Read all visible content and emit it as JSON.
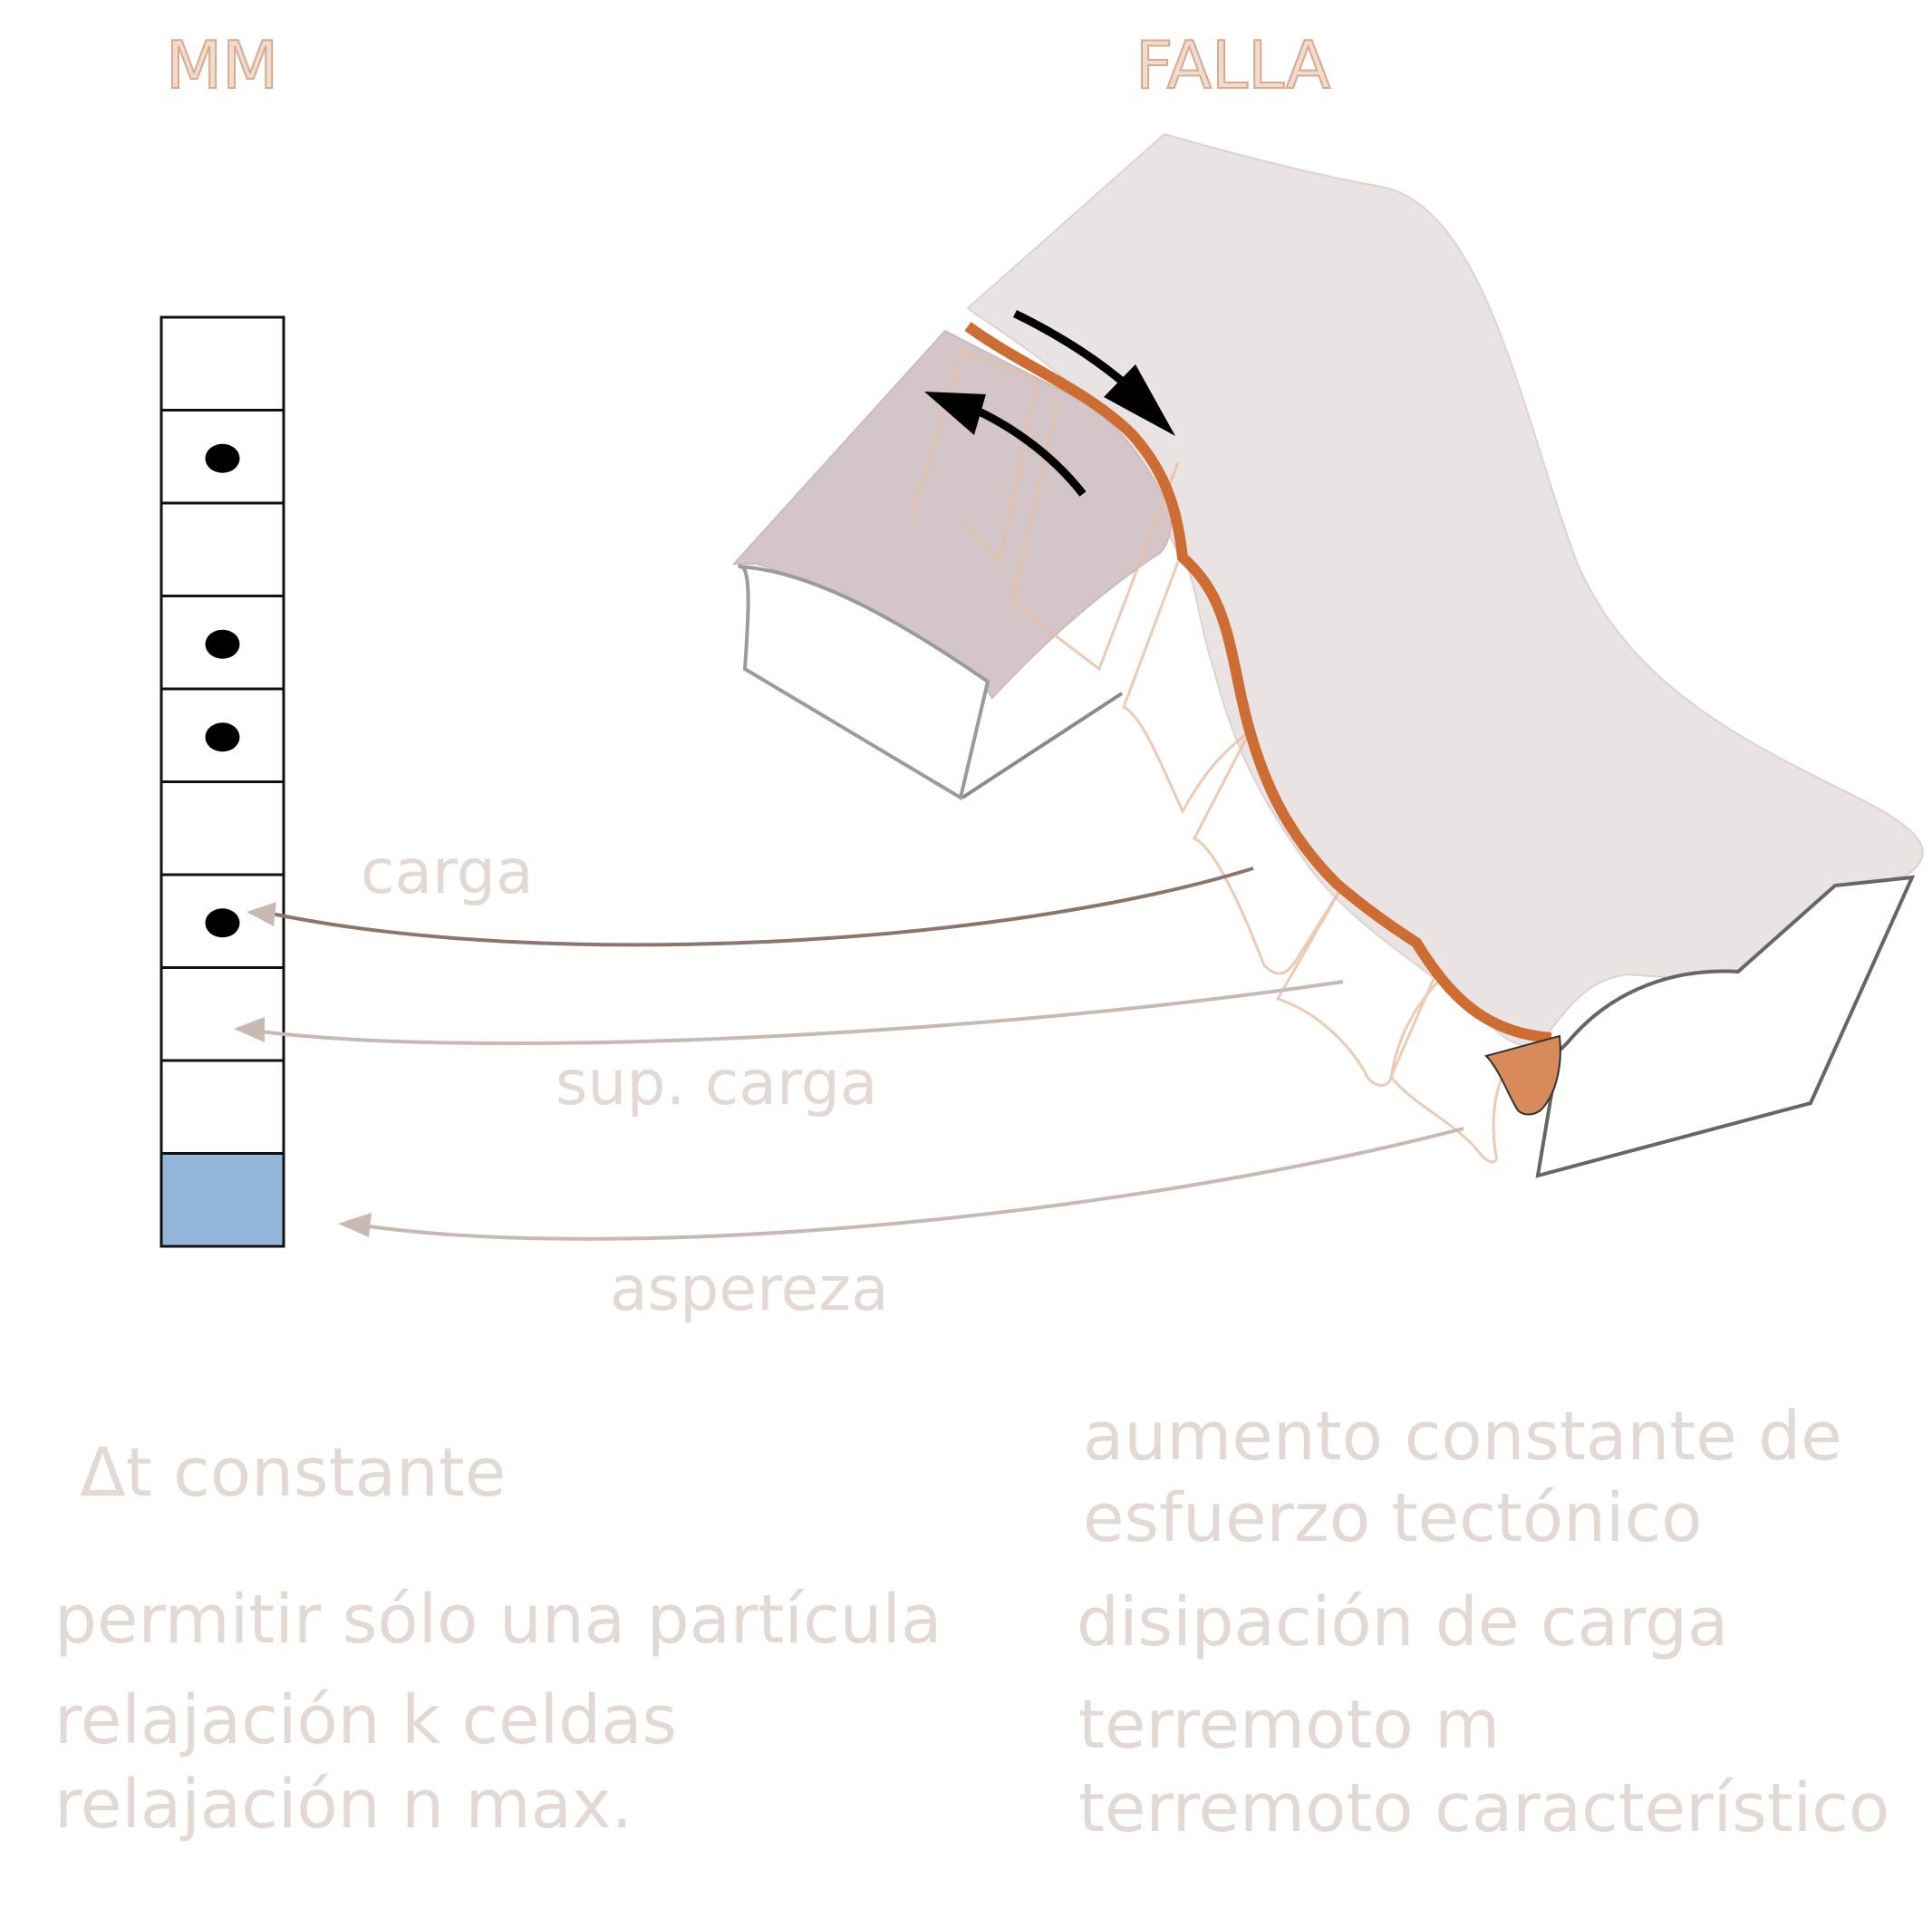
{
  "titles": {
    "mm": "MM",
    "falla": "FALLA"
  },
  "arrow_labels": {
    "carga": "carga",
    "sup_carga": "sup. carga",
    "aspereza": "aspereza"
  },
  "left_column": {
    "dt": "Δt constante",
    "line1": "permitir sólo una partícula",
    "line2": "relajación  k celdas",
    "line3": "relajación  n max."
  },
  "right_column": {
    "line1a": "aumento constante de",
    "line1b": "esfuerzo tectónico",
    "line2": "disipación de carga",
    "line3": "terremoto  m",
    "line4": "terremoto  característico"
  },
  "grid": {
    "cells": 10,
    "particle_cells": [
      2,
      4,
      5,
      7
    ],
    "highlight_cell": 10,
    "highlight_color": "#94b6d9"
  },
  "colors": {
    "fault_orange": "#cd6d34",
    "plate_fill": "#e9e3e3",
    "plate_dark": "#d4c6c8",
    "arrow_brown": "#8a766b",
    "arrow_light": "#c8bab3",
    "asperity": "#d88a5a"
  }
}
